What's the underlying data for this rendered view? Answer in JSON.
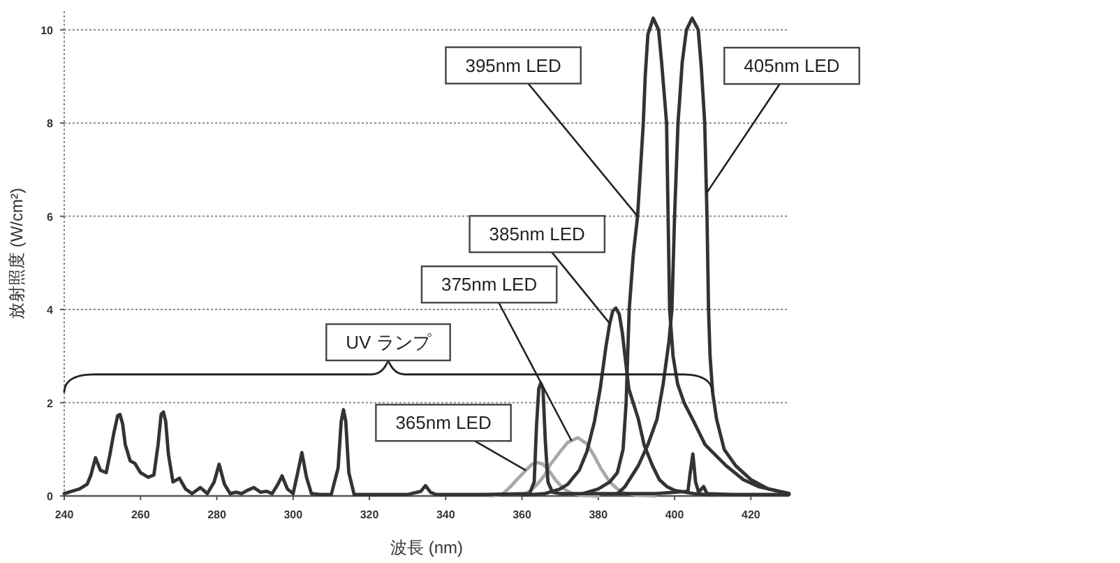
{
  "chart_data": {
    "type": "line",
    "xlabel": "波長 (nm)",
    "ylabel": "放射照度 (W/cm²)",
    "xlim": [
      240,
      430
    ],
    "ylim": [
      0,
      10.4
    ],
    "xticks": [
      240,
      260,
      280,
      300,
      320,
      340,
      360,
      380,
      400,
      420
    ],
    "yticks": [
      0,
      2,
      4,
      6,
      8,
      10
    ],
    "grid": "y",
    "series": [
      {
        "color": "#a8a8a8",
        "x": [
          352,
          355,
          357,
          359,
          361,
          362.5,
          364,
          365.5,
          367,
          369,
          371,
          373,
          376,
          380
        ],
        "values": [
          0,
          0.05,
          0.2,
          0.38,
          0.55,
          0.67,
          0.72,
          0.68,
          0.55,
          0.32,
          0.15,
          0.06,
          0.01,
          0
        ]
      },
      {
        "color": "#a8a8a8",
        "x": [
          360,
          362,
          364,
          366,
          367.2,
          370,
          372,
          374.6,
          377,
          379,
          380.6,
          383,
          385,
          387,
          390,
          395
        ],
        "values": [
          0.02,
          0.1,
          0.25,
          0.45,
          0.65,
          0.95,
          1.15,
          1.25,
          1.12,
          0.85,
          0.6,
          0.3,
          0.15,
          0.06,
          0.02,
          0
        ]
      },
      {
        "color": "#333333",
        "x": [
          360,
          366,
          370,
          372,
          375,
          377,
          379,
          380.5,
          382,
          383,
          383.8,
          384.6,
          385.5,
          386.3,
          387,
          388,
          390.5,
          392,
          394.2,
          396,
          398,
          400,
          405,
          410
        ],
        "values": [
          0.02,
          0.05,
          0.15,
          0.25,
          0.55,
          0.95,
          1.6,
          2.3,
          3.2,
          3.7,
          3.97,
          4.03,
          3.9,
          3.5,
          3.0,
          2.3,
          1.65,
          1.1,
          0.65,
          0.35,
          0.2,
          0.12,
          0.05,
          0.02
        ]
      },
      {
        "color": "#333333",
        "x": [
          376,
          380,
          383,
          385,
          386.5,
          387.3,
          388.1,
          389.2,
          390.3,
          391.8,
          392.3,
          393,
          394.4,
          395.8,
          396.6,
          397.9,
          398.3,
          398.7,
          399.6,
          400.8,
          402.5,
          405,
          408,
          413.5,
          418,
          422,
          430
        ],
        "values": [
          0.05,
          0.15,
          0.3,
          0.5,
          1.0,
          2.0,
          4.0,
          5.2,
          6.0,
          8.0,
          9.0,
          9.9,
          10.25,
          10.0,
          9.3,
          8.0,
          6.0,
          4.0,
          3.0,
          2.4,
          2.0,
          1.6,
          1.1,
          0.65,
          0.35,
          0.2,
          0.05
        ]
      },
      {
        "color": "#333333",
        "x": [
          385,
          387,
          390.5,
          393,
          395.4,
          397,
          398.5,
          399.3,
          400,
          400.9,
          402,
          403.1,
          404.6,
          406.2,
          407,
          407.9,
          408.5,
          408.9,
          409.3,
          410,
          411,
          413,
          416,
          420,
          424.6,
          430
        ],
        "values": [
          0.05,
          0.2,
          0.65,
          1.1,
          1.65,
          2.4,
          3.3,
          4.0,
          6.0,
          8.0,
          9.3,
          10.0,
          10.25,
          10.0,
          9.2,
          8.0,
          6.0,
          4.0,
          3.0,
          2.2,
          1.65,
          1.0,
          0.65,
          0.35,
          0.15,
          0.05
        ]
      },
      {
        "color": "#333333",
        "x": [
          240,
          242,
          244,
          246,
          247,
          248.2,
          249.5,
          251,
          252,
          253,
          254,
          254.6,
          255.3,
          256,
          257.3,
          258.5,
          260,
          262,
          263.5,
          264.6,
          265.4,
          266,
          266.6,
          267.3,
          268.5,
          270.2,
          271.8,
          273.5,
          275.7,
          277.5,
          279.3,
          280.6,
          282,
          283.5,
          285,
          286.5,
          288,
          289.7,
          291.5,
          293,
          294.5,
          296,
          297.1,
          298.5,
          300,
          301.2,
          302.3,
          303.5,
          304.8,
          307,
          310,
          311.8,
          312.6,
          313.2,
          313.8,
          314.6,
          316,
          320,
          330,
          333.5,
          334.7,
          336,
          337.5,
          350,
          362,
          363.2,
          363.8,
          364.4,
          364.9,
          365.5,
          366.1,
          366.8,
          368,
          370,
          380,
          395,
          403.5,
          404.1,
          404.8,
          405.5,
          406.3,
          407.6,
          408.5,
          415,
          430
        ],
        "values": [
          0.05,
          0.1,
          0.15,
          0.25,
          0.45,
          0.82,
          0.55,
          0.5,
          0.9,
          1.35,
          1.72,
          1.75,
          1.55,
          1.1,
          0.75,
          0.7,
          0.5,
          0.4,
          0.45,
          1.1,
          1.75,
          1.8,
          1.6,
          0.9,
          0.3,
          0.38,
          0.15,
          0.05,
          0.18,
          0.05,
          0.3,
          0.68,
          0.25,
          0.05,
          0.08,
          0.05,
          0.12,
          0.18,
          0.08,
          0.1,
          0.05,
          0.25,
          0.43,
          0.15,
          0.05,
          0.5,
          0.93,
          0.4,
          0.05,
          0.03,
          0.03,
          0.6,
          1.6,
          1.85,
          1.6,
          0.5,
          0.03,
          0.03,
          0.03,
          0.1,
          0.22,
          0.08,
          0.03,
          0.03,
          0.05,
          0.3,
          1.5,
          2.3,
          2.42,
          2.3,
          1.2,
          0.3,
          0.08,
          0.05,
          0.05,
          0.05,
          0.1,
          0.5,
          0.9,
          0.3,
          0.08,
          0.2,
          0.05,
          0.03,
          0.03
        ]
      }
    ],
    "annotations": [
      {
        "text": "395nm LED",
        "x": 390.3,
        "y": 6.0
      },
      {
        "text": "405nm LED",
        "x": 408.4,
        "y": 6.5
      },
      {
        "text": "385nm LED",
        "x": 383,
        "y": 3.7
      },
      {
        "text": "375nm LED",
        "x": 373,
        "y": 1.18
      },
      "UV ランプ",
      {
        "text": "365nm LED",
        "x": 361,
        "y": 0.55
      }
    ]
  }
}
